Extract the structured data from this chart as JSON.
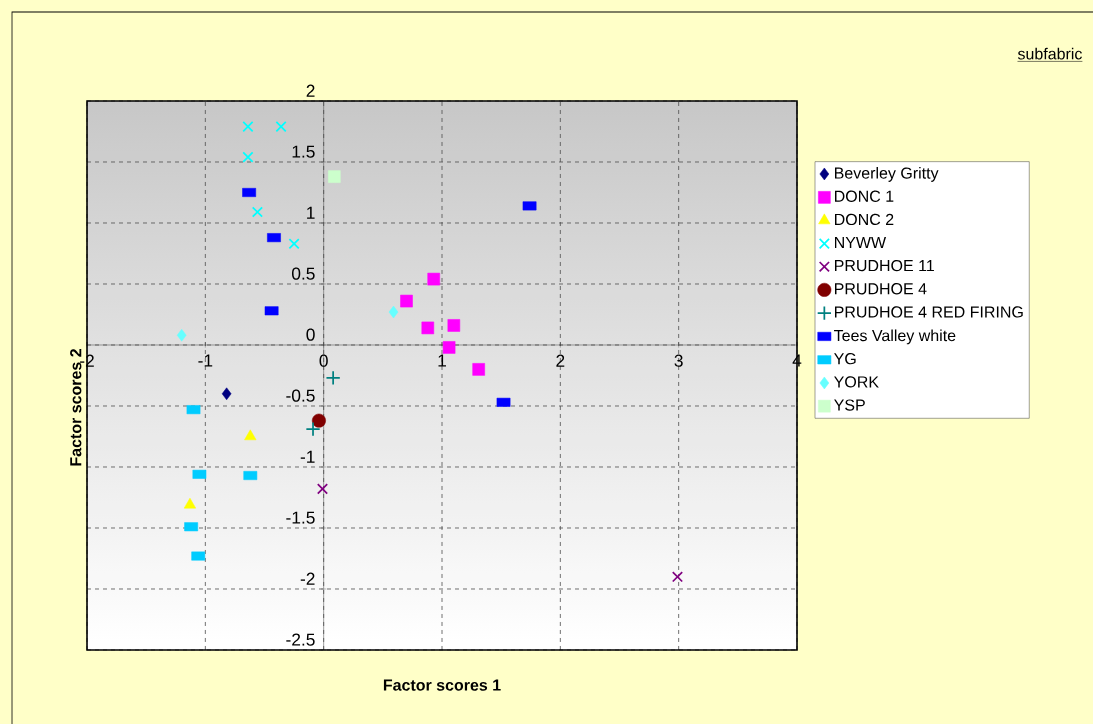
{
  "chart_data": {
    "type": "scatter",
    "title": "subfabric",
    "xlabel": "Factor scores 1",
    "ylabel": "Factor scores 2",
    "xlim": [
      -2,
      4
    ],
    "ylim": [
      -2.5,
      2
    ],
    "xticks": [
      -2,
      -1,
      0,
      1,
      2,
      3,
      4
    ],
    "yticks": [
      -2.5,
      -2,
      -1.5,
      -1,
      -0.5,
      0,
      0.5,
      1,
      1.5,
      2
    ],
    "grid": true,
    "legend": "right",
    "series": [
      {
        "name": "Beverley Gritty",
        "color": "#000080",
        "marker": "diamond",
        "x": [
          -0.82
        ],
        "values": [
          -0.4
        ]
      },
      {
        "name": "DONC 1",
        "color": "#ff00ff",
        "marker": "square",
        "x": [
          0.93,
          0.7,
          0.88,
          1.1,
          1.06,
          1.31
        ],
        "values": [
          0.54,
          0.36,
          0.14,
          0.16,
          -0.02,
          -0.2
        ]
      },
      {
        "name": "DONC 2",
        "color": "#ffff00",
        "marker": "triangle",
        "x": [
          -0.62,
          -1.13
        ],
        "values": [
          -0.75,
          -1.31
        ]
      },
      {
        "name": "NYWW",
        "color": "#00ffff",
        "marker": "cross",
        "x": [
          -0.64,
          -0.36,
          -0.64,
          -0.56,
          -0.25
        ],
        "values": [
          1.79,
          1.79,
          1.54,
          1.09,
          0.83
        ]
      },
      {
        "name": "PRUDHOE 11",
        "color": "#800080",
        "marker": "cross",
        "x": [
          -0.01,
          2.99
        ],
        "values": [
          -1.18,
          -1.9
        ]
      },
      {
        "name": "PRUDHOE 4",
        "color": "#800000",
        "marker": "circle",
        "x": [
          -0.04
        ],
        "values": [
          -0.62
        ]
      },
      {
        "name": "PRUDHOE 4 RED FIRING",
        "color": "#008080",
        "marker": "plus",
        "x": [
          -0.09,
          0.08
        ],
        "values": [
          -0.69,
          -0.27
        ]
      },
      {
        "name": "Tees Valley white",
        "color": "#0000ff",
        "marker": "square",
        "x": [
          -0.63,
          -0.42,
          -0.44,
          1.74,
          1.52
        ],
        "values": [
          1.25,
          0.88,
          0.28,
          1.14,
          -0.47
        ]
      },
      {
        "name": "YG",
        "color": "#00ccff",
        "marker": "square",
        "x": [
          -1.1,
          -1.05,
          -0.62,
          -1.12,
          -1.06
        ],
        "values": [
          -0.53,
          -1.06,
          -1.07,
          -1.49,
          -1.73
        ]
      },
      {
        "name": "YORK",
        "color": "#66ffff",
        "marker": "diamond",
        "x": [
          -1.2,
          0.59
        ],
        "values": [
          0.08,
          0.27
        ]
      },
      {
        "name": "YSP",
        "color": "#ccffcc",
        "marker": "square",
        "x": [
          0.09
        ],
        "values": [
          1.38
        ]
      }
    ]
  }
}
